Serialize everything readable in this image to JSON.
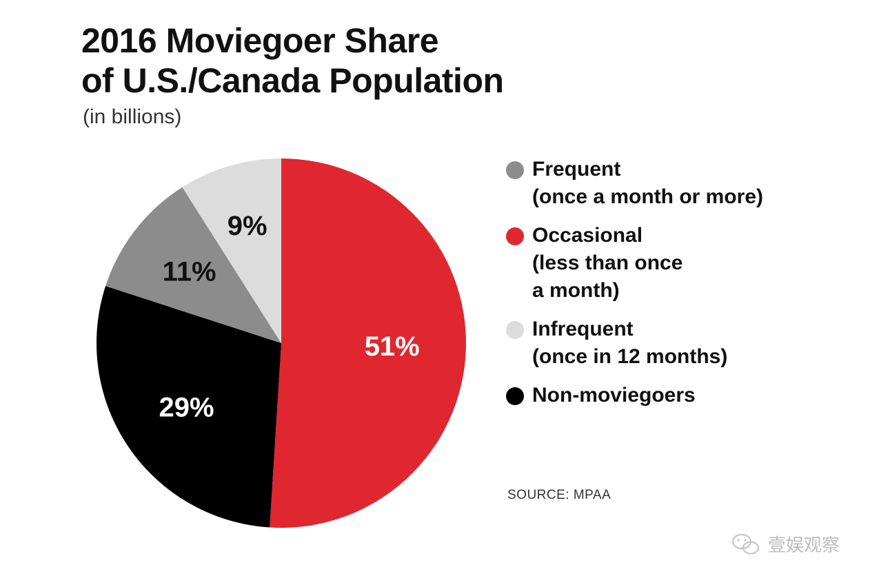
{
  "title_lines": [
    "2016 Moviegoer Share",
    "of U.S./Canada Population"
  ],
  "subtitle": "(in billions)",
  "source": "SOURCE: MPAA",
  "watermark": "壹娱观察",
  "colors": {
    "frequent": "#8c8c8c",
    "occasional": "#e0262e",
    "infrequent": "#dcdcdc",
    "nonmoviegoers": "#000000"
  },
  "legend": [
    {
      "key": "frequent",
      "lines": [
        "Frequent",
        "(once a month or more)"
      ]
    },
    {
      "key": "occasional",
      "lines": [
        "Occasional",
        "(less than once",
        "a month)"
      ]
    },
    {
      "key": "infrequent",
      "lines": [
        "Infrequent",
        "(once in 12 months)"
      ]
    },
    {
      "key": "nonmoviegoers",
      "lines": [
        "Non-moviegoers"
      ]
    }
  ],
  "chart_data": {
    "type": "pie",
    "title": "2016 Moviegoer Share of U.S./Canada Population",
    "subtitle": "(in billions)",
    "slices": [
      {
        "name": "Occasional (less than once a month)",
        "value": 51,
        "label": "51%",
        "color": "#e0262e",
        "label_color": "#ffffff"
      },
      {
        "name": "Non-moviegoers",
        "value": 29,
        "label": "29%",
        "color": "#000000",
        "label_color": "#ffffff"
      },
      {
        "name": "Frequent (once a month or more)",
        "value": 11,
        "label": "11%",
        "color": "#8c8c8c",
        "label_color": "#111111"
      },
      {
        "name": "Infrequent (once in 12 months)",
        "value": 9,
        "label": "9%",
        "color": "#dcdcdc",
        "label_color": "#111111"
      }
    ],
    "start": "12 o'clock",
    "direction": "clockwise",
    "legend_position": "right"
  }
}
